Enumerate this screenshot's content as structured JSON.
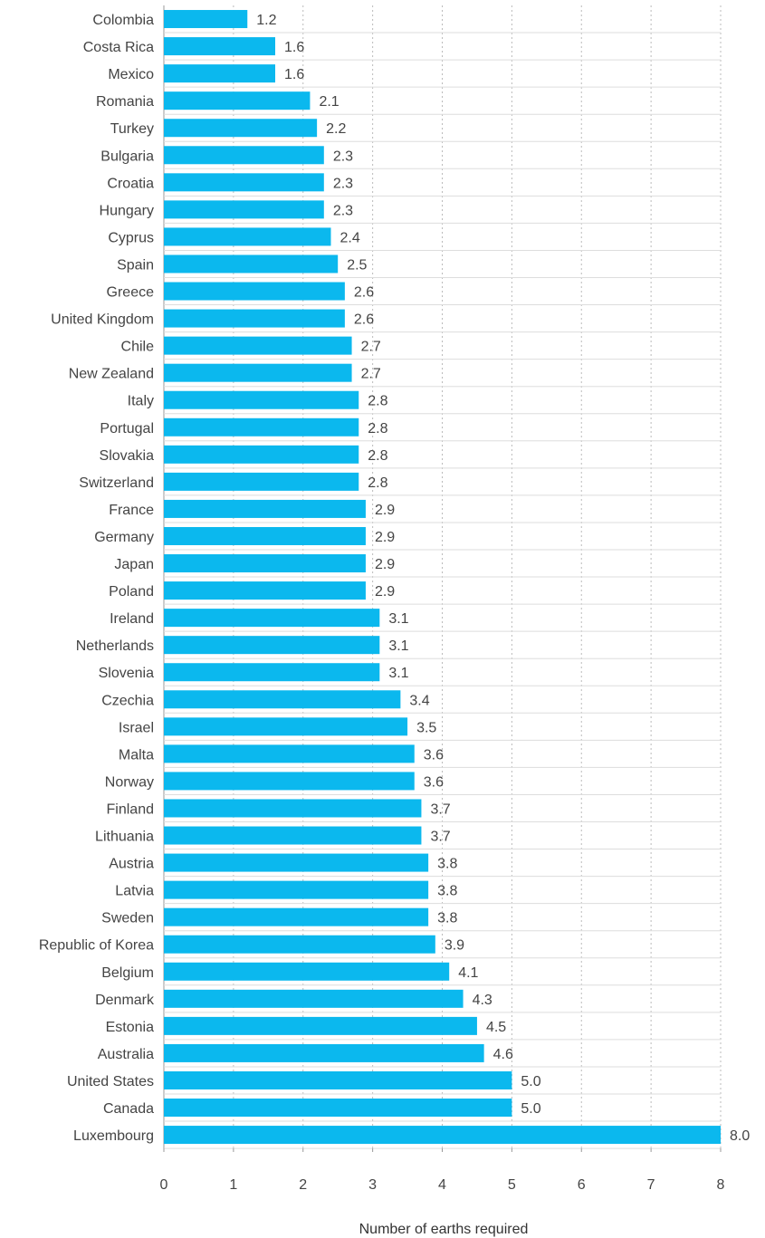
{
  "chart_data": {
    "type": "bar",
    "orientation": "horizontal",
    "title": "",
    "xlabel": "Number of earths required",
    "ylabel": "",
    "xlim": [
      0,
      8
    ],
    "x_ticks": [
      "0",
      "1",
      "2",
      "3",
      "4",
      "5",
      "6",
      "7",
      "8"
    ],
    "grid": true,
    "bar_color": "#0bb8ee",
    "categories": [
      "Colombia",
      "Costa Rica",
      "Mexico",
      "Romania",
      "Turkey",
      "Bulgaria",
      "Croatia",
      "Hungary",
      "Cyprus",
      "Spain",
      "Greece",
      "United Kingdom",
      "Chile",
      "New Zealand",
      "Italy",
      "Portugal",
      "Slovakia",
      "Switzerland",
      "France",
      "Germany",
      "Japan",
      "Poland",
      "Ireland",
      "Netherlands",
      "Slovenia",
      "Czechia",
      "Israel",
      "Malta",
      "Norway",
      "Finland",
      "Lithuania",
      "Austria",
      "Latvia",
      "Sweden",
      "Republic of Korea",
      "Belgium",
      "Denmark",
      "Estonia",
      "Australia",
      "United States",
      "Canada",
      "Luxembourg"
    ],
    "values": [
      1.2,
      1.6,
      1.6,
      2.1,
      2.2,
      2.3,
      2.3,
      2.3,
      2.4,
      2.5,
      2.6,
      2.6,
      2.7,
      2.7,
      2.8,
      2.8,
      2.8,
      2.8,
      2.9,
      2.9,
      2.9,
      2.9,
      3.1,
      3.1,
      3.1,
      3.4,
      3.5,
      3.6,
      3.6,
      3.7,
      3.7,
      3.8,
      3.8,
      3.8,
      3.9,
      4.1,
      4.3,
      4.5,
      4.6,
      5.0,
      5.0,
      8.0
    ],
    "value_labels": [
      "1.2",
      "1.6",
      "1.6",
      "2.1",
      "2.2",
      "2.3",
      "2.3",
      "2.3",
      "2.4",
      "2.5",
      "2.6",
      "2.6",
      "2.7",
      "2.7",
      "2.8",
      "2.8",
      "2.8",
      "2.8",
      "2.9",
      "2.9",
      "2.9",
      "2.9",
      "3.1",
      "3.1",
      "3.1",
      "3.4",
      "3.5",
      "3.6",
      "3.6",
      "3.7",
      "3.7",
      "3.8",
      "3.8",
      "3.8",
      "3.9",
      "4.1",
      "4.3",
      "4.5",
      "4.6",
      "5.0",
      "5.0",
      "8.0"
    ]
  }
}
